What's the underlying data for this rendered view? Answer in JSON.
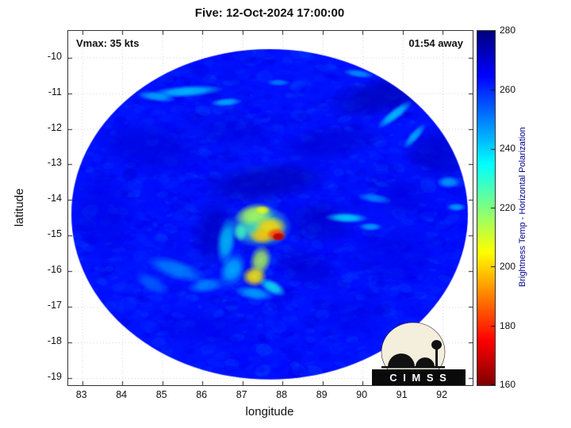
{
  "logo": {
    "text": "C I M S S"
  },
  "chart_data": {
    "type": "heatmap",
    "title": "Five: 12-Oct-2024 17:00:00",
    "xlabel": "longitude",
    "ylabel": "latitude",
    "xlim": [
      82.65,
      92.75
    ],
    "ylim": [
      -19.2,
      -9.25
    ],
    "x_ticks": [
      83,
      84,
      85,
      86,
      87,
      88,
      89,
      90,
      91,
      92
    ],
    "y_ticks": [
      -10,
      -11,
      -12,
      -13,
      -14,
      -15,
      -16,
      -17,
      -18,
      -19
    ],
    "grid": true,
    "annotations": {
      "vmax": "Vmax: 35 kts",
      "eta": "01:54 away"
    },
    "colorbar": {
      "label": "Brightness Temp - Horizontal Polarization",
      "min": 160,
      "max": 280,
      "ticks": [
        160,
        180,
        200,
        220,
        240,
        260,
        280
      ],
      "colormap": "jet_reversed",
      "label_color": "#00008b"
    },
    "swath": {
      "center_lon": 87.68,
      "center_lat": -14.4,
      "radius_lon_deg": 4.95,
      "radius_lat_deg": 4.64,
      "base_temp_K": 263,
      "noise_amp_K": 16
    },
    "features": [
      {
        "lon": 90.6,
        "lat": -11.05,
        "rx_deg": 1.6,
        "ry_deg": 0.6,
        "rot_deg": -12,
        "temp": 275,
        "alpha": 0.65
      },
      {
        "lon": 91.9,
        "lat": -12.7,
        "rx_deg": 1.0,
        "ry_deg": 0.8,
        "rot_deg": 15,
        "temp": 273,
        "alpha": 0.6
      },
      {
        "lon": 89.2,
        "lat": -12.4,
        "rx_deg": 1.5,
        "ry_deg": 0.55,
        "rot_deg": -8,
        "temp": 271,
        "alpha": 0.55
      },
      {
        "lon": 86.8,
        "lat": -12.1,
        "rx_deg": 1.2,
        "ry_deg": 0.5,
        "rot_deg": 4,
        "temp": 269,
        "alpha": 0.5
      },
      {
        "lon": 84.6,
        "lat": -12.5,
        "rx_deg": 1.5,
        "ry_deg": 0.8,
        "rot_deg": 8,
        "temp": 270,
        "alpha": 0.55
      },
      {
        "lon": 83.5,
        "lat": -14.4,
        "rx_deg": 0.9,
        "ry_deg": 1.3,
        "rot_deg": 0,
        "temp": 268,
        "alpha": 0.5
      },
      {
        "lon": 87.6,
        "lat": -13.5,
        "rx_deg": 1.7,
        "ry_deg": 0.6,
        "rot_deg": -6,
        "temp": 274,
        "alpha": 0.7
      },
      {
        "lon": 86.3,
        "lat": -14.9,
        "rx_deg": 0.6,
        "ry_deg": 1.0,
        "rot_deg": 8,
        "temp": 273,
        "alpha": 0.65
      },
      {
        "lon": 88.95,
        "lat": -14.6,
        "rx_deg": 1.0,
        "ry_deg": 0.7,
        "rot_deg": 0,
        "temp": 272,
        "alpha": 0.6
      },
      {
        "lon": 88.6,
        "lat": -15.9,
        "rx_deg": 0.95,
        "ry_deg": 0.6,
        "rot_deg": 18,
        "temp": 271,
        "alpha": 0.55
      },
      {
        "lon": 90.8,
        "lat": -15.6,
        "rx_deg": 1.3,
        "ry_deg": 0.9,
        "rot_deg": 0,
        "temp": 268,
        "alpha": 0.45
      },
      {
        "lon": 89.8,
        "lat": -17.2,
        "rx_deg": 1.2,
        "ry_deg": 0.7,
        "rot_deg": -12,
        "temp": 268,
        "alpha": 0.45
      },
      {
        "lon": 85.8,
        "lat": -17.6,
        "rx_deg": 1.3,
        "ry_deg": 0.6,
        "rot_deg": 8,
        "temp": 268,
        "alpha": 0.45
      },
      {
        "lon": 91.0,
        "lat": -13.9,
        "rx_deg": 0.8,
        "ry_deg": 0.6,
        "rot_deg": 0,
        "temp": 269,
        "alpha": 0.45
      },
      {
        "lon": 85.6,
        "lat": -10.95,
        "rx_deg": 0.95,
        "ry_deg": 0.17,
        "rot_deg": -4,
        "temp": 240,
        "alpha": 0.85
      },
      {
        "lon": 84.85,
        "lat": -11.1,
        "rx_deg": 0.5,
        "ry_deg": 0.14,
        "rot_deg": 8,
        "temp": 243,
        "alpha": 0.8
      },
      {
        "lon": 86.6,
        "lat": -11.25,
        "rx_deg": 0.4,
        "ry_deg": 0.12,
        "rot_deg": -4,
        "temp": 242,
        "alpha": 0.8
      },
      {
        "lon": 87.9,
        "lat": -10.7,
        "rx_deg": 0.3,
        "ry_deg": 0.1,
        "rot_deg": 0,
        "temp": 246,
        "alpha": 0.7
      },
      {
        "lon": 89.9,
        "lat": -10.45,
        "rx_deg": 0.4,
        "ry_deg": 0.12,
        "rot_deg": 8,
        "temp": 244,
        "alpha": 0.75
      },
      {
        "lon": 90.8,
        "lat": -11.6,
        "rx_deg": 0.55,
        "ry_deg": 0.16,
        "rot_deg": -38,
        "temp": 240,
        "alpha": 0.85
      },
      {
        "lon": 91.3,
        "lat": -12.2,
        "rx_deg": 0.4,
        "ry_deg": 0.14,
        "rot_deg": -48,
        "temp": 242,
        "alpha": 0.8
      },
      {
        "lon": 92.15,
        "lat": -13.5,
        "rx_deg": 0.3,
        "ry_deg": 0.18,
        "rot_deg": 0,
        "temp": 243,
        "alpha": 0.75
      },
      {
        "lon": 90.3,
        "lat": -13.95,
        "rx_deg": 0.45,
        "ry_deg": 0.14,
        "rot_deg": 8,
        "temp": 246,
        "alpha": 0.7
      },
      {
        "lon": 89.6,
        "lat": -14.5,
        "rx_deg": 0.55,
        "ry_deg": 0.15,
        "rot_deg": 2,
        "temp": 238,
        "alpha": 0.85
      },
      {
        "lon": 90.2,
        "lat": -14.75,
        "rx_deg": 0.3,
        "ry_deg": 0.12,
        "rot_deg": 0,
        "temp": 242,
        "alpha": 0.75
      },
      {
        "lon": 92.35,
        "lat": -14.2,
        "rx_deg": 0.25,
        "ry_deg": 0.12,
        "rot_deg": 0,
        "temp": 241,
        "alpha": 0.7
      },
      {
        "lon": 87.45,
        "lat": -14.75,
        "rx_deg": 0.8,
        "ry_deg": 0.6,
        "rot_deg": 0,
        "temp": 225,
        "alpha": 0.85
      },
      {
        "lon": 87.3,
        "lat": -14.4,
        "rx_deg": 0.5,
        "ry_deg": 0.32,
        "rot_deg": -12,
        "temp": 215,
        "alpha": 0.9
      },
      {
        "lon": 87.7,
        "lat": -14.75,
        "rx_deg": 0.42,
        "ry_deg": 0.3,
        "rot_deg": 0,
        "temp": 200,
        "alpha": 0.9
      },
      {
        "lon": 87.5,
        "lat": -15.0,
        "rx_deg": 0.35,
        "ry_deg": 0.25,
        "rot_deg": 0,
        "temp": 198,
        "alpha": 0.9
      },
      {
        "lon": 87.85,
        "lat": -14.97,
        "rx_deg": 0.26,
        "ry_deg": 0.2,
        "rot_deg": 0,
        "temp": 183,
        "alpha": 0.95
      },
      {
        "lon": 87.9,
        "lat": -15.03,
        "rx_deg": 0.16,
        "ry_deg": 0.12,
        "rot_deg": 0,
        "temp": 167,
        "alpha": 1.0,
        "hard": true
      },
      {
        "lon": 87.5,
        "lat": -14.28,
        "rx_deg": 0.2,
        "ry_deg": 0.13,
        "rot_deg": 0,
        "temp": 207,
        "alpha": 0.85
      },
      {
        "lon": 87.45,
        "lat": -15.7,
        "rx_deg": 0.28,
        "ry_deg": 0.45,
        "rot_deg": 14,
        "temp": 214,
        "alpha": 0.85
      },
      {
        "lon": 87.3,
        "lat": -16.15,
        "rx_deg": 0.32,
        "ry_deg": 0.3,
        "rot_deg": 0,
        "temp": 203,
        "alpha": 0.9
      },
      {
        "lon": 87.75,
        "lat": -16.45,
        "rx_deg": 0.38,
        "ry_deg": 0.2,
        "rot_deg": 28,
        "temp": 233,
        "alpha": 0.8
      },
      {
        "lon": 86.6,
        "lat": -15.15,
        "rx_deg": 0.25,
        "ry_deg": 0.7,
        "rot_deg": 8,
        "temp": 238,
        "alpha": 0.75
      },
      {
        "lon": 86.75,
        "lat": -15.95,
        "rx_deg": 0.32,
        "ry_deg": 0.5,
        "rot_deg": 26,
        "temp": 240,
        "alpha": 0.75
      },
      {
        "lon": 87.3,
        "lat": -16.62,
        "rx_deg": 0.5,
        "ry_deg": 0.2,
        "rot_deg": 8,
        "temp": 242,
        "alpha": 0.75
      },
      {
        "lon": 86.95,
        "lat": -14.9,
        "rx_deg": 0.18,
        "ry_deg": 0.28,
        "rot_deg": 0,
        "temp": 228,
        "alpha": 0.8
      },
      {
        "lon": 85.35,
        "lat": -15.95,
        "rx_deg": 0.8,
        "ry_deg": 0.3,
        "rot_deg": 18,
        "temp": 246,
        "alpha": 0.7
      },
      {
        "lon": 84.75,
        "lat": -16.35,
        "rx_deg": 0.5,
        "ry_deg": 0.25,
        "rot_deg": 28,
        "temp": 250,
        "alpha": 0.6
      },
      {
        "lon": 86.1,
        "lat": -16.4,
        "rx_deg": 0.5,
        "ry_deg": 0.22,
        "rot_deg": -8,
        "temp": 245,
        "alpha": 0.65
      }
    ]
  }
}
